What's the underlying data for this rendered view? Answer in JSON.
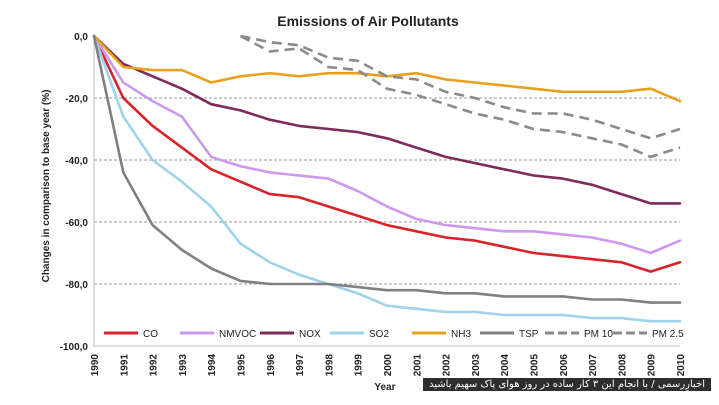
{
  "chart_data": {
    "type": "line",
    "title": "Emissions of Air Pollutants",
    "xlabel": "Year",
    "ylabel": "Changes in comparison to base year (%)",
    "ylim": [
      -100,
      0
    ],
    "ytick_labels": [
      "0,0",
      "-20,0",
      "-40,0",
      "-60,0",
      "-80,0",
      "-100,0"
    ],
    "ytick_values": [
      0,
      -20,
      -40,
      -60,
      -80,
      -100
    ],
    "grid": "horizontal dashed",
    "legend_position": "bottom",
    "x": [
      "1990",
      "1991",
      "1992",
      "1993",
      "1994",
      "1995",
      "1996",
      "1997",
      "1998",
      "1999",
      "2000",
      "2001",
      "2002",
      "2003",
      "2004",
      "2005",
      "2006",
      "2007",
      "2008",
      "2009",
      "2010"
    ],
    "series": [
      {
        "name": "CO",
        "color": "#d8232a",
        "style": "solid",
        "values": [
          0,
          -20,
          -29,
          -36,
          -43,
          -47,
          -51,
          -52,
          -55,
          -58,
          -61,
          -63,
          -65,
          -66,
          -68,
          -70,
          -71,
          -72,
          -73,
          -76,
          -73
        ]
      },
      {
        "name": "NMVOC",
        "color": "#cc99ee",
        "style": "solid",
        "values": [
          0,
          -15,
          -21,
          -26,
          -39,
          -42,
          -44,
          -45,
          -46,
          -50,
          -55,
          -59,
          -61,
          -62,
          -63,
          -63,
          -64,
          -65,
          -67,
          -70,
          -66
        ]
      },
      {
        "name": "NOX",
        "color": "#7d2a5c",
        "style": "solid",
        "values": [
          0,
          -9,
          -13,
          -17,
          -22,
          -24,
          -27,
          -29,
          -30,
          -31,
          -33,
          -36,
          -39,
          -41,
          -43,
          -45,
          -46,
          -48,
          -51,
          -54,
          -54
        ]
      },
      {
        "name": "SO2",
        "color": "#9fd3ea",
        "style": "solid",
        "values": [
          0,
          -26,
          -40,
          -47,
          -55,
          -67,
          -73,
          -77,
          -80,
          -83,
          -87,
          -88,
          -89,
          -89,
          -90,
          -90,
          -90,
          -91,
          -91,
          -92,
          -92
        ]
      },
      {
        "name": "NH3",
        "color": "#e8a11e",
        "style": "solid",
        "values": [
          0,
          -10,
          -11,
          -11,
          -15,
          -13,
          -12,
          -13,
          -12,
          -12,
          -13,
          -12,
          -14,
          -15,
          -16,
          -17,
          -18,
          -18,
          -18,
          -17,
          -21
        ]
      },
      {
        "name": "TSP",
        "color": "#808080",
        "style": "solid",
        "values": [
          0,
          -44,
          -61,
          -69,
          -75,
          -79,
          -80,
          -80,
          -80,
          -81,
          -82,
          -82,
          -83,
          -83,
          -84,
          -84,
          -84,
          -85,
          -85,
          -86,
          -86
        ]
      },
      {
        "name": "PM 10",
        "color": "#8a8a8a",
        "style": "dashed",
        "start_index": 5,
        "values": [
          null,
          null,
          null,
          null,
          null,
          0,
          -2,
          -3,
          -7,
          -8,
          -13,
          -14,
          -18,
          -20,
          -23,
          -25,
          -25,
          -27,
          -30,
          -33,
          -30
        ]
      },
      {
        "name": "PM 2.5",
        "color": "#8a8a8a",
        "style": "dashed",
        "start_index": 5,
        "values": [
          null,
          null,
          null,
          null,
          null,
          0,
          -5,
          -4,
          -10,
          -11,
          -17,
          -19,
          -22,
          -25,
          -27,
          -30,
          -31,
          -33,
          -35,
          -39,
          -36
        ]
      }
    ]
  },
  "caption": "اخبارِرسمی / با انجام این ۳ کار ساده در روز هوای پاک سهیم باشید"
}
